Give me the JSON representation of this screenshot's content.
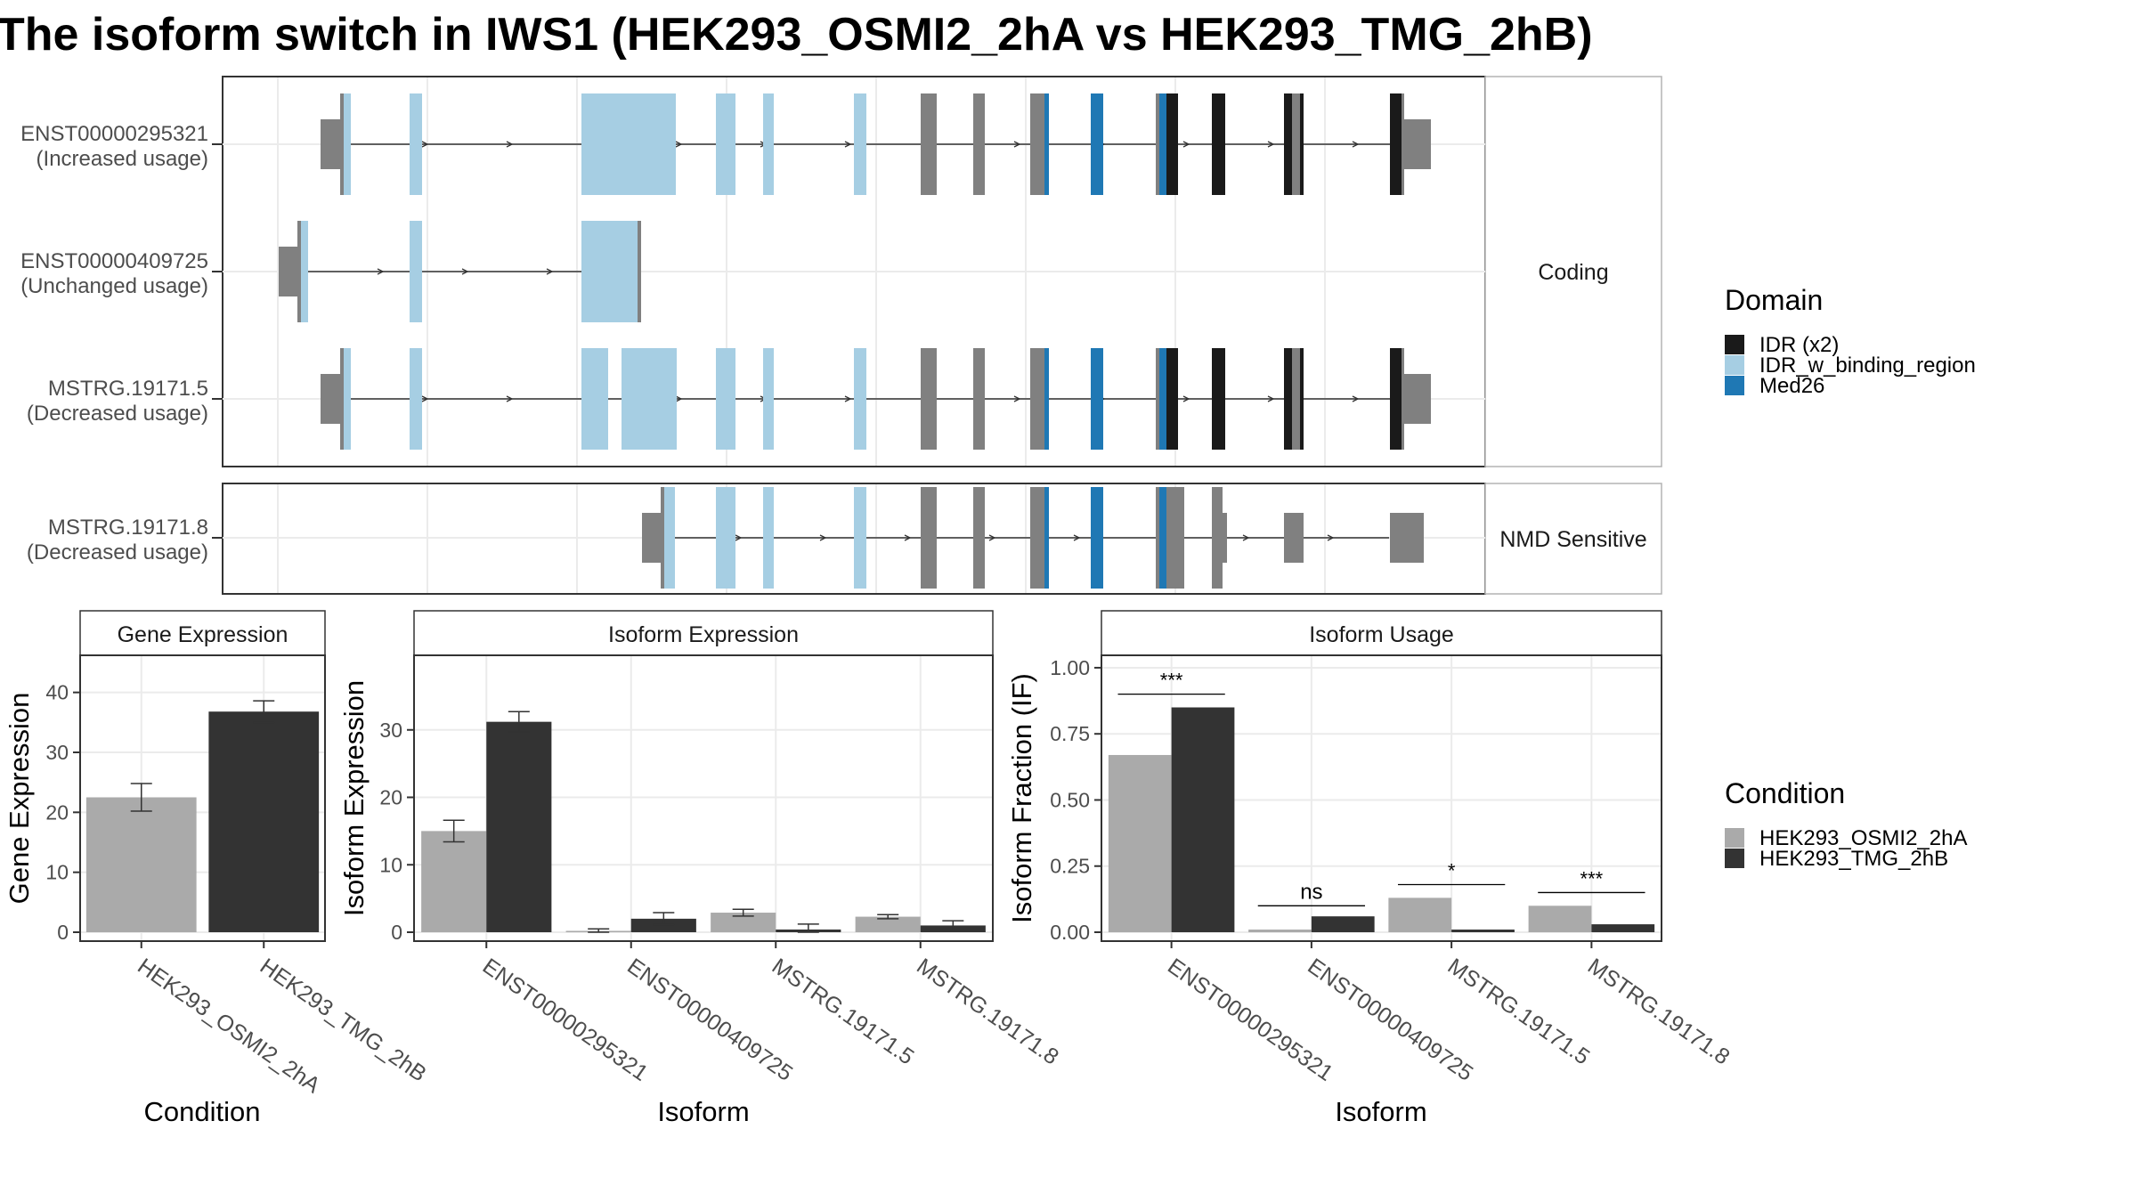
{
  "title": "The isoform switch in IWS1 (HEK293_OSMI2_2hA vs HEK293_TMG_2hB)",
  "structure": {
    "facets": [
      "Coding",
      "NMD Sensitive"
    ],
    "transcripts": [
      {
        "id": "ENST00000295321",
        "usage": "(Increased usage)",
        "facet": 0
      },
      {
        "id": "ENST00000409725",
        "usage": "(Unchanged usage)",
        "facet": 0
      },
      {
        "id": "MSTRG.19171.5",
        "usage": "(Decreased usage)",
        "facet": 0
      },
      {
        "id": "MSTRG.19171.8",
        "usage": "(Decreased usage)",
        "facet": 1
      }
    ]
  },
  "domain_legend": {
    "title": "Domain",
    "items": [
      {
        "label": "IDR (x2)",
        "color": "#1a1a1a"
      },
      {
        "label": "IDR_w_binding_region",
        "color": "#a6cee3"
      },
      {
        "label": "Med26",
        "color": "#1f78b4"
      }
    ]
  },
  "condition_legend": {
    "title": "Condition",
    "items": [
      {
        "label": "HEK293_OSMI2_2hA",
        "color": "#aaaaaa"
      },
      {
        "label": "HEK293_TMG_2hB",
        "color": "#333333"
      }
    ]
  },
  "chart_data": [
    {
      "type": "bar",
      "title": "Gene Expression",
      "xlabel": "Condition",
      "ylabel": "Gene Expression",
      "ylim": [
        0,
        45
      ],
      "yticks": [
        0,
        10,
        20,
        30,
        40
      ],
      "categories": [
        "HEK293_OSMI2_2hA",
        "HEK293_TMG_2hB"
      ],
      "values": [
        22.5,
        36.8
      ],
      "errors": [
        2.3,
        1.8
      ]
    },
    {
      "type": "bar",
      "title": "Isoform Expression",
      "xlabel": "Isoform",
      "ylabel": "Isoform Expression",
      "ylim": [
        0,
        40
      ],
      "yticks": [
        0,
        10,
        20,
        30
      ],
      "categories": [
        "ENST00000295321",
        "ENST00000409725",
        "MSTRG.19171.5",
        "MSTRG.19171.8"
      ],
      "series": [
        {
          "name": "HEK293_OSMI2_2hA",
          "values": [
            15.0,
            0.2,
            2.9,
            2.3
          ],
          "errors": [
            1.6,
            0.3,
            0.5,
            0.3
          ]
        },
        {
          "name": "HEK293_TMG_2hB",
          "values": [
            31.2,
            2.0,
            0.4,
            1.0
          ],
          "errors": [
            1.5,
            0.9,
            0.8,
            0.7
          ]
        }
      ]
    },
    {
      "type": "bar",
      "title": "Isoform Usage",
      "xlabel": "Isoform",
      "ylabel": "Isoform Fraction (IF)",
      "ylim": [
        0,
        1.02
      ],
      "yticks": [
        "0.00",
        "0.25",
        "0.50",
        "0.75",
        "1.00"
      ],
      "categories": [
        "ENST00000295321",
        "ENST00000409725",
        "MSTRG.19171.5",
        "MSTRG.19171.8"
      ],
      "series": [
        {
          "name": "HEK293_OSMI2_2hA",
          "values": [
            0.67,
            0.01,
            0.13,
            0.1
          ]
        },
        {
          "name": "HEK293_TMG_2hB",
          "values": [
            0.85,
            0.06,
            0.01,
            0.03
          ]
        }
      ],
      "significance": [
        "***",
        "ns",
        "*",
        "***"
      ],
      "significance_levels": [
        0.9,
        0.1,
        0.18,
        0.15
      ]
    }
  ]
}
